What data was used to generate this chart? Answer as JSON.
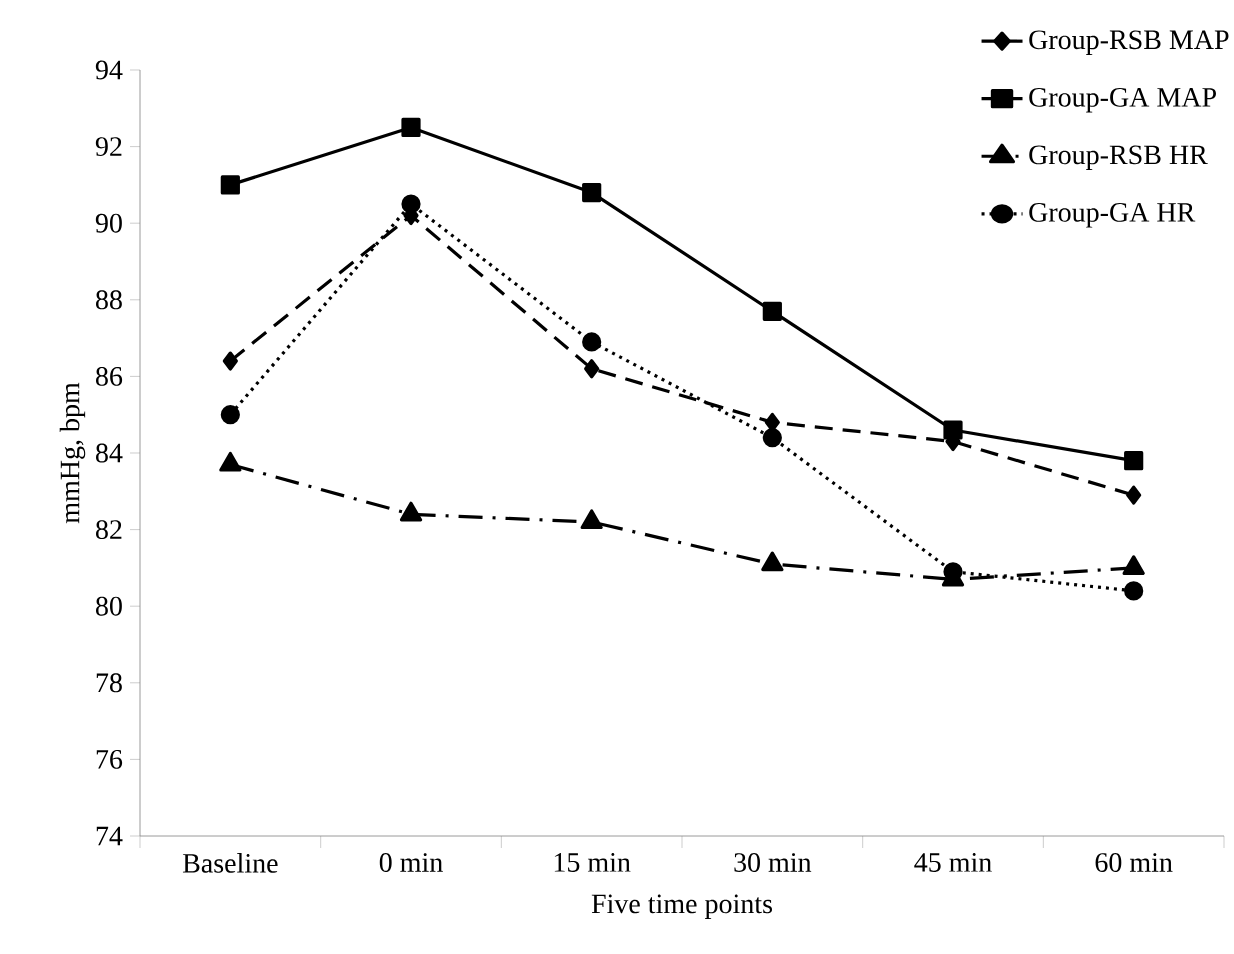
{
  "chart_data": {
    "type": "line",
    "xlabel": "Five time points",
    "ylabel": "mmHg, bpm",
    "categories": [
      "Baseline",
      "0 min",
      "15 min",
      "30 min",
      "45 min",
      "60 min"
    ],
    "ylim": [
      74,
      94
    ],
    "yticks": [
      74,
      76,
      78,
      80,
      82,
      84,
      86,
      88,
      90,
      92,
      94
    ],
    "legend": "top right",
    "grid": false,
    "series": [
      {
        "name": "Group-RSB MAP",
        "color": "#000000",
        "marker": "diamond",
        "line_style": "dashed",
        "values": [
          86.4,
          90.2,
          86.2,
          84.8,
          84.3,
          82.9
        ]
      },
      {
        "name": "Group-GA MAP",
        "color": "#000000",
        "marker": "square",
        "line_style": "solid",
        "values": [
          91.0,
          92.5,
          90.8,
          87.7,
          84.6,
          83.8
        ]
      },
      {
        "name": "Group-RSB HR",
        "color": "#000000",
        "marker": "triangle",
        "line_style": "dashdot",
        "values": [
          83.7,
          82.4,
          82.2,
          81.1,
          80.7,
          81.0
        ]
      },
      {
        "name": "Group-GA HR",
        "color": "#000000",
        "marker": "circle",
        "line_style": "dotted",
        "values": [
          85.0,
          90.5,
          86.9,
          84.4,
          80.9,
          80.4
        ]
      }
    ]
  }
}
